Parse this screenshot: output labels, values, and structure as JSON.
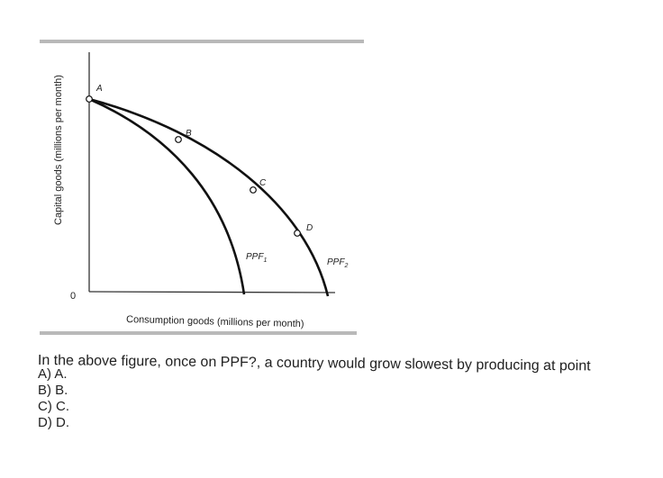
{
  "figure": {
    "y_axis_label": "Capital goods (millions per month)",
    "x_axis_label": "Consumption goods (millions per month)",
    "origin_label": "0",
    "curves": [
      {
        "label_main": "PPF",
        "label_sub": "1"
      },
      {
        "label_main": "PPF",
        "label_sub": "2"
      }
    ],
    "points": [
      "A",
      "B",
      "C",
      "D"
    ]
  },
  "question": {
    "text": "In the above figure, once on PPF?, a country would grow slowest by producing at point",
    "options": [
      "A) A.",
      "B) B.",
      "C) C.",
      "D) D."
    ]
  }
}
